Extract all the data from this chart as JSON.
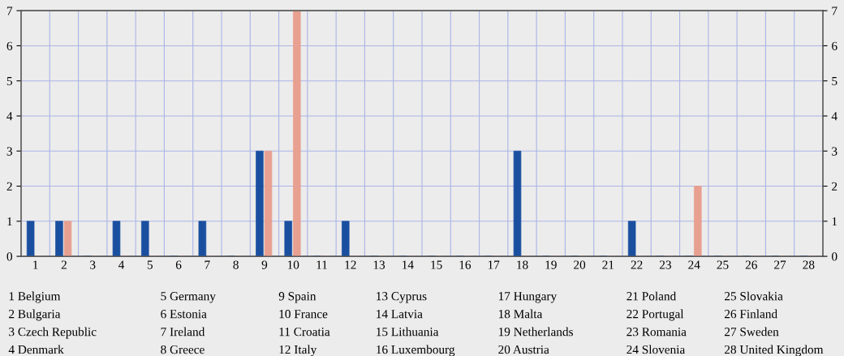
{
  "chart_data": {
    "type": "bar",
    "categories": [
      "1",
      "2",
      "3",
      "4",
      "5",
      "6",
      "7",
      "8",
      "9",
      "10",
      "11",
      "12",
      "13",
      "14",
      "15",
      "16",
      "17",
      "18",
      "19",
      "20",
      "21",
      "22",
      "23",
      "24",
      "25",
      "26",
      "27",
      "28"
    ],
    "series": [
      {
        "color": "#1a4fa0",
        "values": [
          1,
          1,
          0,
          1,
          1,
          0,
          1,
          0,
          3,
          1,
          0,
          1,
          0,
          0,
          0,
          0,
          0,
          3,
          0,
          0,
          0,
          1,
          0,
          0,
          0,
          0,
          0,
          0
        ]
      },
      {
        "color": "#e8a090",
        "values": [
          0,
          1,
          0,
          0,
          0,
          0,
          0,
          0,
          3,
          7,
          0,
          0,
          0,
          0,
          0,
          0,
          0,
          0,
          0,
          0,
          0,
          0,
          0,
          2,
          0,
          0,
          0,
          0
        ]
      }
    ],
    "ylim": [
      0,
      7
    ],
    "yticks": [
      0,
      1,
      2,
      3,
      4,
      5,
      6,
      7
    ],
    "y2lim": [
      0,
      7
    ],
    "y2ticks": [
      0,
      1,
      2,
      3,
      4,
      5,
      6,
      7
    ],
    "grid": true,
    "legend": false,
    "annotations": [
      "1 Belgium",
      "2 Bulgaria",
      "3 Czech Republic",
      "4 Denmark",
      "5 Germany",
      "6 Estonia",
      "7 Ireland",
      "8 Greece",
      "9 Spain",
      "10 France",
      "11 Croatia",
      "12 Italy",
      "13 Cyprus",
      "14 Latvia",
      "15 Lithuania",
      "16 Luxembourg",
      "17 Hungary",
      "18 Malta",
      "19 Netherlands",
      "20 Austria",
      "21 Poland",
      "22 Portugal",
      "23 Romania",
      "24 Slovenia",
      "25 Slovakia",
      "26 Finland",
      "27 Sweden",
      "28 United Kingdom"
    ]
  }
}
